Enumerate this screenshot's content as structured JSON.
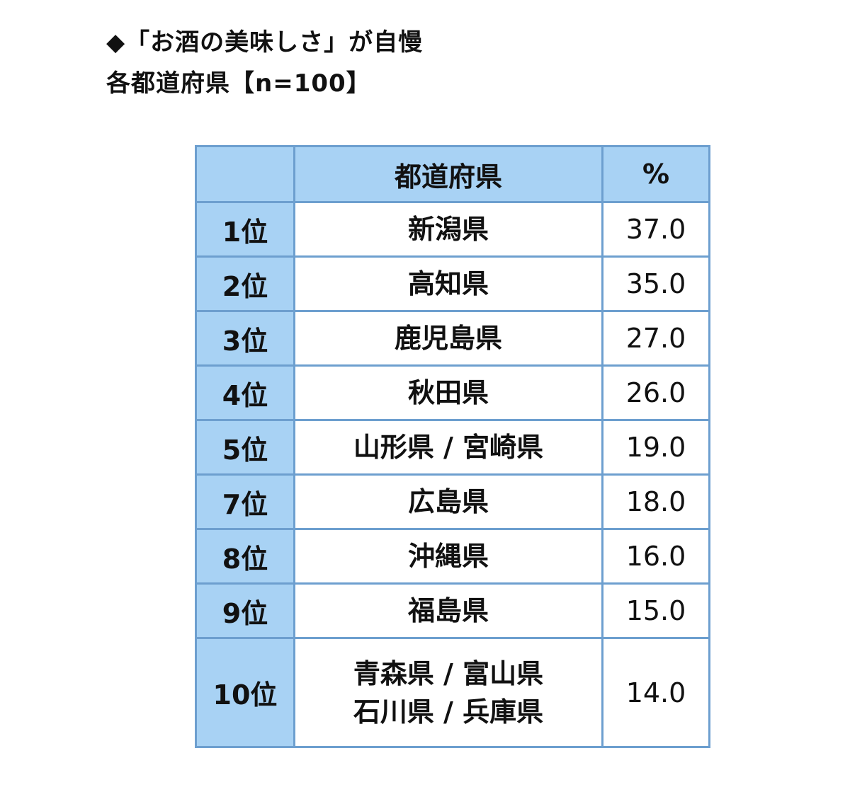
{
  "title_line1": "◆「お酒の美味しさ」が自慢",
  "title_line2": "各都道府県【n=100】",
  "chart_data": {
    "type": "table",
    "columns": [
      "",
      "都道府県",
      "%"
    ],
    "rows": [
      {
        "rank": "1位",
        "prefectures": [
          "新潟県"
        ],
        "value": "37.0"
      },
      {
        "rank": "2位",
        "prefectures": [
          "高知県"
        ],
        "value": "35.0"
      },
      {
        "rank": "3位",
        "prefectures": [
          "鹿児島県"
        ],
        "value": "27.0"
      },
      {
        "rank": "4位",
        "prefectures": [
          "秋田県"
        ],
        "value": "26.0"
      },
      {
        "rank": "5位",
        "prefectures": [
          "山形県 / 宮崎県"
        ],
        "value": "19.0"
      },
      {
        "rank": "7位",
        "prefectures": [
          "広島県"
        ],
        "value": "18.0"
      },
      {
        "rank": "8位",
        "prefectures": [
          "沖縄県"
        ],
        "value": "16.0"
      },
      {
        "rank": "9位",
        "prefectures": [
          "福島県"
        ],
        "value": "15.0"
      },
      {
        "rank": "10位",
        "prefectures": [
          "青森県 / 富山県",
          "石川県 / 兵庫県"
        ],
        "value": "14.0"
      }
    ]
  },
  "colors": {
    "header_bg": "#a8d2f4",
    "border": "#6d9fcf"
  }
}
